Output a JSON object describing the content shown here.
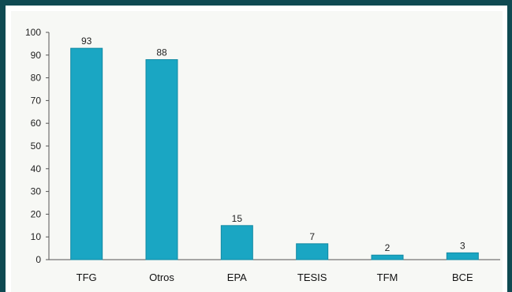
{
  "chart_data": {
    "type": "bar",
    "categories": [
      "TFG",
      "Otros",
      "EPA",
      "TESIS",
      "TFM",
      "BCE"
    ],
    "values": [
      93,
      88,
      15,
      7,
      2,
      3
    ],
    "data_labels": [
      "93",
      "88",
      "15",
      "7",
      "2",
      "3"
    ],
    "title": "",
    "xlabel": "",
    "ylabel": "",
    "ylim": [
      0,
      100
    ],
    "yticks": [
      0,
      10,
      20,
      30,
      40,
      50,
      60,
      70,
      80,
      90,
      100
    ],
    "grid": false,
    "legend": "none",
    "colors": {
      "bar": "#1aa6c3",
      "bar_edge": "#138aa3",
      "frame": "#0f4a52",
      "plot_background": "#f7f8f5"
    }
  }
}
